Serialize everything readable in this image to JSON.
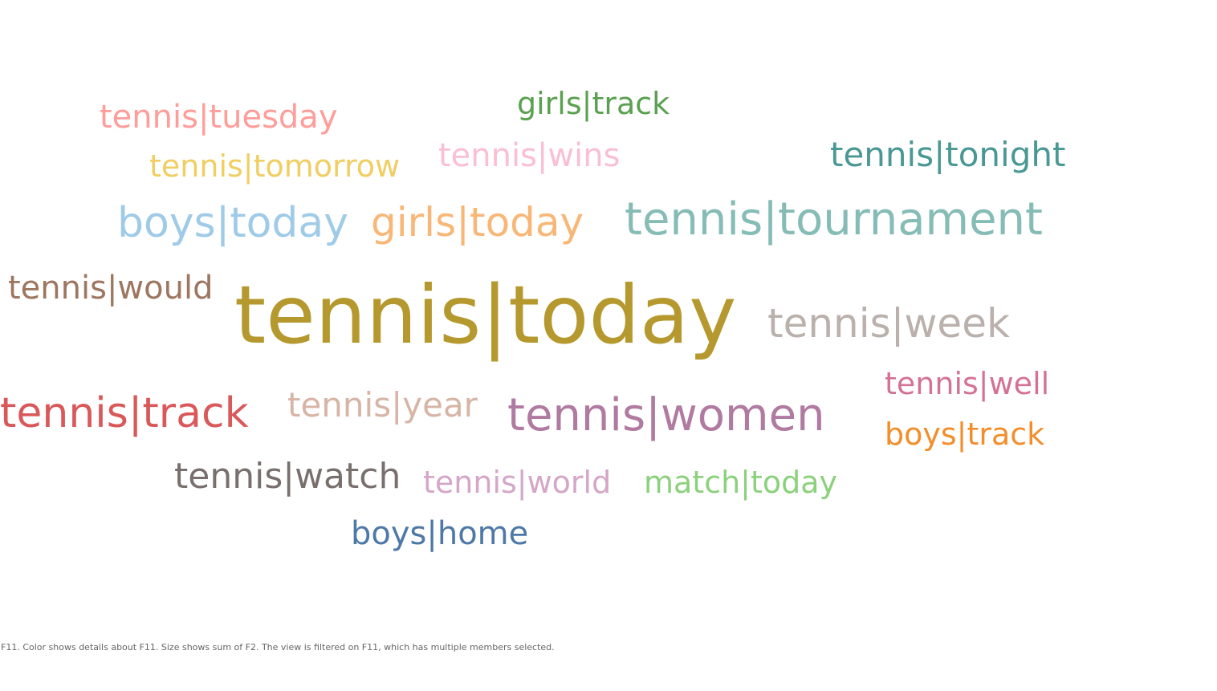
{
  "chart_data": {
    "type": "wordcloud",
    "title": "",
    "size_measure": "sum of F2",
    "color_dimension": "F11",
    "words": [
      {
        "text": "tennis|today",
        "size": 100,
        "color": "#b5992f"
      },
      {
        "text": "tennis|tournament",
        "size": 56,
        "color": "#86bcb6"
      },
      {
        "text": "tennis|women",
        "size": 56,
        "color": "#b07aa1"
      },
      {
        "text": "tennis|track",
        "size": 52,
        "color": "#d9595b"
      },
      {
        "text": "tennis|week",
        "size": 50,
        "color": "#bab0ac"
      },
      {
        "text": "boys|today",
        "size": 52,
        "color": "#a0cbe8"
      },
      {
        "text": "girls|today",
        "size": 50,
        "color": "#f9b777"
      },
      {
        "text": "tennis|year",
        "size": 42,
        "color": "#d7b5a6"
      },
      {
        "text": "tennis|watch",
        "size": 44,
        "color": "#79706e"
      },
      {
        "text": "tennis|tonight",
        "size": 42,
        "color": "#499894"
      },
      {
        "text": "tennis|would",
        "size": 40,
        "color": "#9d7660"
      },
      {
        "text": "tennis|tuesday",
        "size": 40,
        "color": "#ff9d9a"
      },
      {
        "text": "tennis|wins",
        "size": 40,
        "color": "#fabfd2"
      },
      {
        "text": "tennis|well",
        "size": 38,
        "color": "#d37295"
      },
      {
        "text": "tennis|world",
        "size": 38,
        "color": "#d4a6c8"
      },
      {
        "text": "match|today",
        "size": 38,
        "color": "#8cd17d"
      },
      {
        "text": "tennis|tomorrow",
        "size": 38,
        "color": "#f1ce63"
      },
      {
        "text": "boys|track",
        "size": 38,
        "color": "#f28e2b"
      },
      {
        "text": "girls|track",
        "size": 38,
        "color": "#59a14f"
      },
      {
        "text": "boys|home",
        "size": 40,
        "color": "#4e79a7"
      }
    ]
  },
  "caption": "F11.  Color shows details about F11.  Size shows sum of F2. The view is filtered on F11, which has multiple members selected."
}
